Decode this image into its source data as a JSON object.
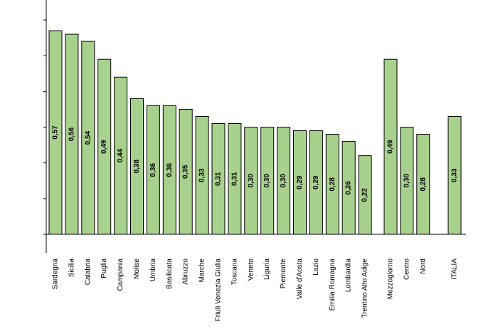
{
  "chart_data": {
    "type": "bar",
    "title": "",
    "xlabel": "",
    "ylabel": "",
    "ylim": [
      0,
      0.63
    ],
    "grid": false,
    "colors": {
      "bar": "#a9d18e",
      "edge": "#000000"
    },
    "groups": [
      {
        "categories": [
          "Sardegna",
          "Sicilia",
          "Calabria",
          "Puglia",
          "Campania",
          "Molise",
          "Umbria",
          "Basilicata",
          "Abruzzo",
          "Marche",
          "Friuli Venezia Giulia",
          "Toscana",
          "Veneto",
          "Liguria",
          "Piemonte",
          "Valle d'Aosta",
          "Lazio",
          "Emilia Romagna",
          "Lombardia",
          "Trentino Alto Adige"
        ],
        "values": [
          0.57,
          0.56,
          0.54,
          0.49,
          0.44,
          0.38,
          0.36,
          0.36,
          0.35,
          0.33,
          0.31,
          0.31,
          0.3,
          0.3,
          0.3,
          0.29,
          0.29,
          0.28,
          0.26,
          0.22
        ],
        "labels": [
          "0,57",
          "0,56",
          "0,54",
          "0,49",
          "0,44",
          "0,38",
          "0,36",
          "0,36",
          "0,35",
          "0,33",
          "0,31",
          "0,31",
          "0,30",
          "0,30",
          "0,30",
          "0,29",
          "0,29",
          "0,28",
          "0,26",
          "0,22"
        ]
      },
      {
        "categories": [
          "Mezzogiorno",
          "Centro",
          "Nord"
        ],
        "values": [
          0.49,
          0.3,
          0.28
        ],
        "labels": [
          "0,49",
          "0,30",
          "0,28"
        ]
      },
      {
        "categories": [
          "ITALIA"
        ],
        "values": [
          0.33
        ],
        "labels": [
          "0,33"
        ]
      }
    ]
  }
}
